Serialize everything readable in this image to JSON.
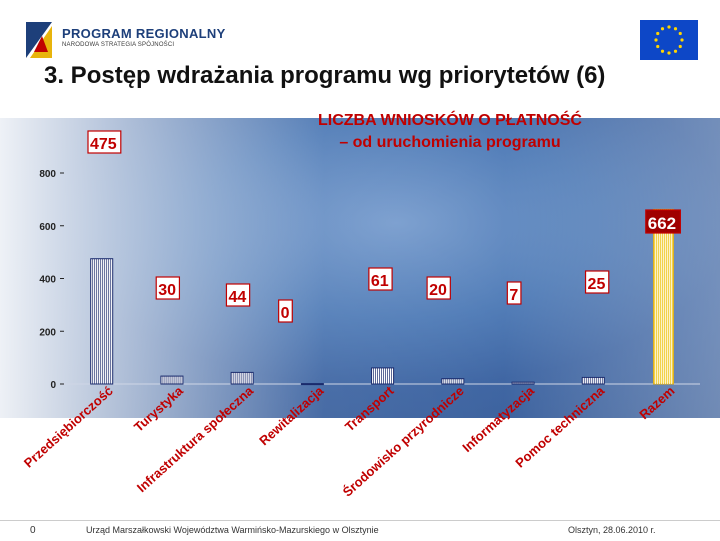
{
  "header": {
    "logo_title": "PROGRAM REGIONALNY",
    "logo_subtitle": "NARODOWA STRATEGIA SPÓJNOŚCI"
  },
  "slide": {
    "title": "3. Postęp wdrażania programu wg priorytetów (6)",
    "subtitle_line1": "LICZBA WNIOSKÓW O PŁATNOŚĆ",
    "subtitle_line2": "– od uruchomienia programu"
  },
  "chart_data": {
    "type": "bar",
    "categories": [
      "Przedsiębiorczość",
      "Turystyka",
      "Infrastruktura społeczna",
      "Rewitalizacja",
      "Transport",
      "Środowisko przyrodnicze",
      "Informatyzacja",
      "Pomoc techniczna",
      "Razem"
    ],
    "values": [
      475,
      30,
      44,
      0,
      61,
      20,
      7,
      25,
      662
    ],
    "data_labels": [
      "475",
      "30",
      "44",
      "0",
      "61",
      "20",
      "7",
      "25",
      "662"
    ],
    "y_ticks": [
      "0",
      "200",
      "400",
      "600",
      "800"
    ],
    "ylim": [
      0,
      800
    ],
    "colors": {
      "bar": "#1a2a6c",
      "total_bar": "#f2d24a",
      "label_text": "#c00000",
      "label_border": "#c00000"
    }
  },
  "footer": {
    "page_number": "0",
    "institution": "Urząd Marszałkowski Województwa Warmińsko-Mazurskiego w Olsztynie",
    "date": "Olsztyn, 28.06.2010 r."
  }
}
